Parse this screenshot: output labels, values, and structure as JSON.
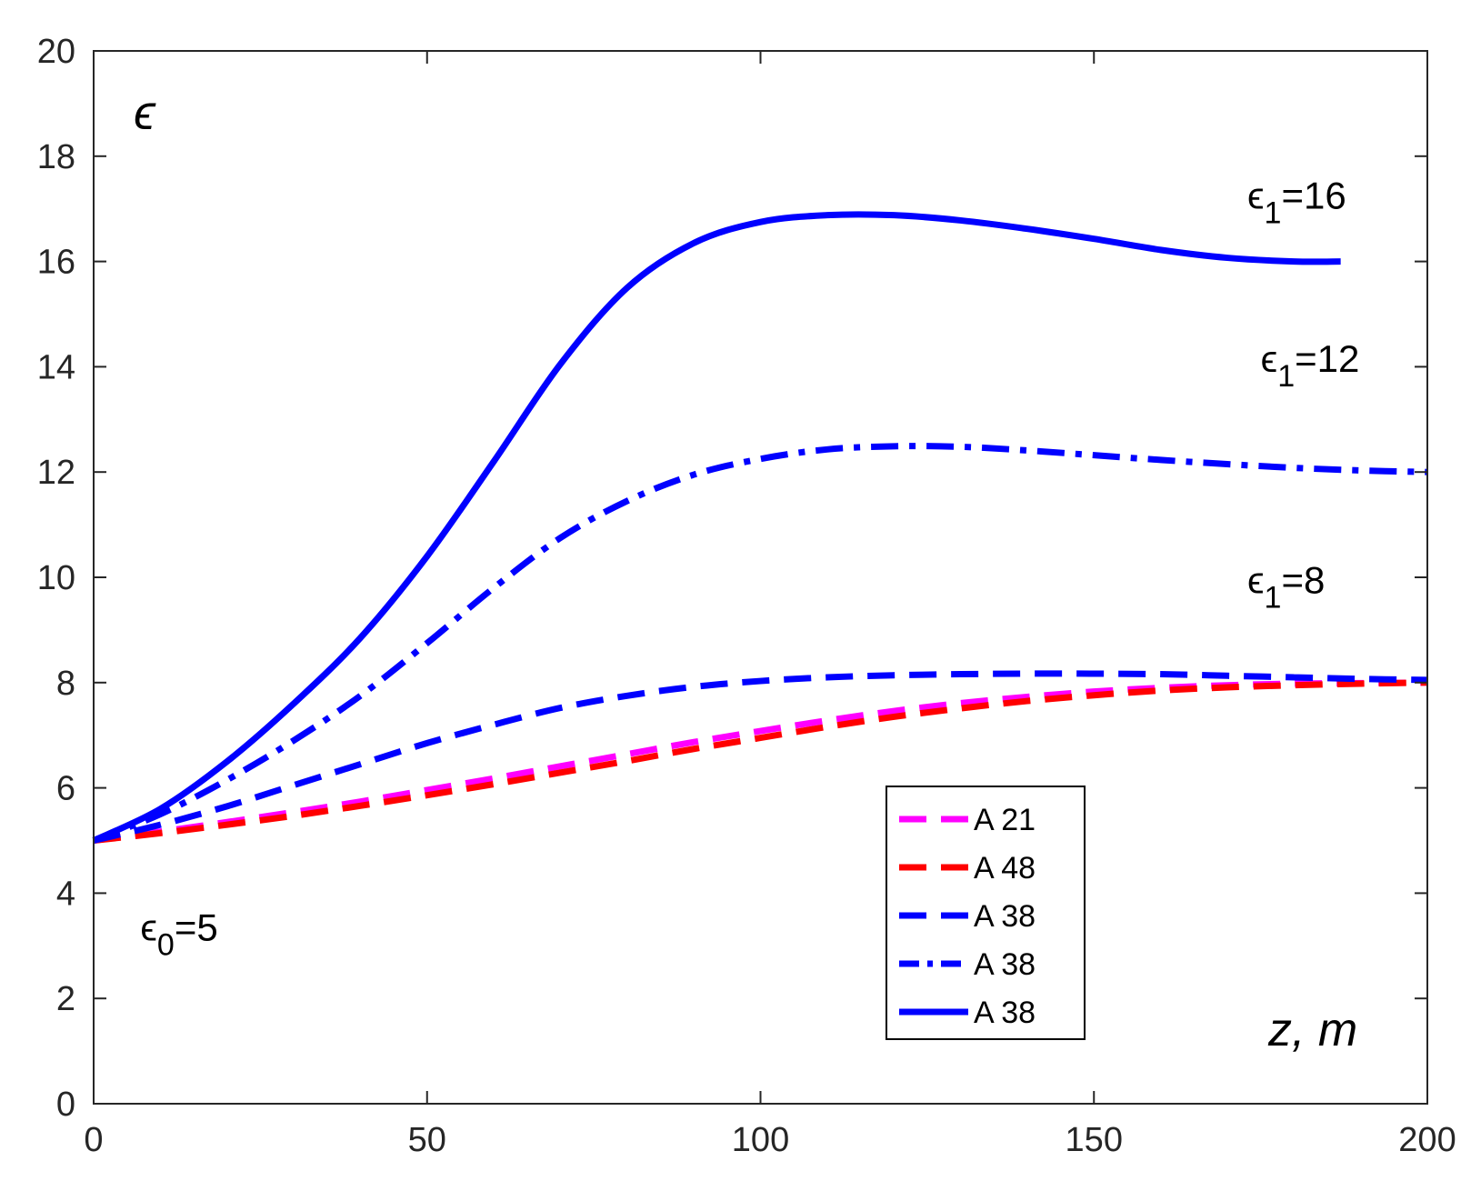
{
  "chart_data": {
    "type": "line",
    "xlim": [
      0,
      200
    ],
    "ylim": [
      0,
      20
    ],
    "xticks": [
      "0",
      "50",
      "100",
      "150",
      "200"
    ],
    "yticks": [
      "0",
      "2",
      "4",
      "6",
      "8",
      "10",
      "12",
      "14",
      "16",
      "18",
      "20"
    ],
    "xlabel": "z, m",
    "ylabel": "ϵ",
    "grid": false,
    "legend_position": "bottom-right",
    "annotations": {
      "eps0": {
        "base": "ϵ",
        "sub": "0",
        "rest": "=5",
        "x": 7,
        "y": 3.1
      },
      "eps1_16": {
        "base": "ϵ",
        "sub": "1",
        "rest": "=16",
        "x": 173,
        "y": 17.0
      },
      "eps1_12": {
        "base": "ϵ",
        "sub": "1",
        "rest": "=12",
        "x": 175,
        "y": 13.9
      },
      "eps1_8": {
        "base": "ϵ",
        "sub": "1",
        "rest": "=8",
        "x": 173,
        "y": 9.7
      }
    },
    "series": [
      {
        "name": "A 21",
        "color": "#ff00ff",
        "style": "dashed",
        "x": [
          0,
          10,
          20,
          30,
          40,
          50,
          60,
          70,
          80,
          90,
          100,
          110,
          120,
          130,
          140,
          150,
          160,
          170,
          180,
          190,
          200
        ],
        "y": [
          5.0,
          5.17,
          5.35,
          5.54,
          5.74,
          5.96,
          6.18,
          6.41,
          6.64,
          6.87,
          7.08,
          7.28,
          7.46,
          7.61,
          7.73,
          7.83,
          7.9,
          7.95,
          7.98,
          7.99,
          8.0
        ]
      },
      {
        "name": "A 48",
        "color": "#ff0000",
        "style": "dashed",
        "x": [
          0,
          10,
          20,
          30,
          40,
          50,
          60,
          70,
          80,
          90,
          100,
          110,
          120,
          130,
          140,
          150,
          160,
          170,
          180,
          190,
          200
        ],
        "y": [
          5.0,
          5.14,
          5.3,
          5.47,
          5.66,
          5.86,
          6.07,
          6.29,
          6.51,
          6.74,
          6.95,
          7.16,
          7.35,
          7.51,
          7.65,
          7.76,
          7.85,
          7.91,
          7.95,
          7.98,
          8.0
        ]
      },
      {
        "name": "A 38",
        "color": "#0000ff",
        "style": "dashed",
        "x": [
          0,
          10,
          20,
          30,
          40,
          50,
          60,
          70,
          80,
          90,
          100,
          110,
          120,
          130,
          140,
          150,
          160,
          170,
          180,
          190,
          200
        ],
        "y": [
          5.0,
          5.3,
          5.65,
          6.05,
          6.45,
          6.85,
          7.2,
          7.52,
          7.75,
          7.92,
          8.03,
          8.1,
          8.14,
          8.16,
          8.17,
          8.17,
          8.16,
          8.13,
          8.1,
          8.07,
          8.05
        ]
      },
      {
        "name": "A 38",
        "color": "#0000ff",
        "style": "dashdot",
        "x": [
          0,
          10,
          20,
          30,
          40,
          50,
          60,
          70,
          80,
          90,
          100,
          110,
          120,
          130,
          140,
          150,
          160,
          170,
          180,
          190,
          200
        ],
        "y": [
          5.0,
          5.5,
          6.15,
          6.9,
          7.75,
          8.75,
          9.8,
          10.75,
          11.45,
          11.95,
          12.25,
          12.43,
          12.49,
          12.48,
          12.41,
          12.32,
          12.23,
          12.15,
          12.08,
          12.03,
          12.0
        ]
      },
      {
        "name": "A 38",
        "color": "#0000ff",
        "style": "solid",
        "x": [
          0,
          10,
          20,
          30,
          40,
          50,
          60,
          70,
          80,
          90,
          100,
          110,
          120,
          130,
          140,
          150,
          160,
          170,
          180,
          187
        ],
        "y": [
          5.0,
          5.6,
          6.5,
          7.6,
          8.85,
          10.4,
          12.2,
          14.05,
          15.5,
          16.35,
          16.75,
          16.88,
          16.88,
          16.78,
          16.62,
          16.43,
          16.22,
          16.07,
          16.0,
          16.0
        ]
      }
    ]
  }
}
